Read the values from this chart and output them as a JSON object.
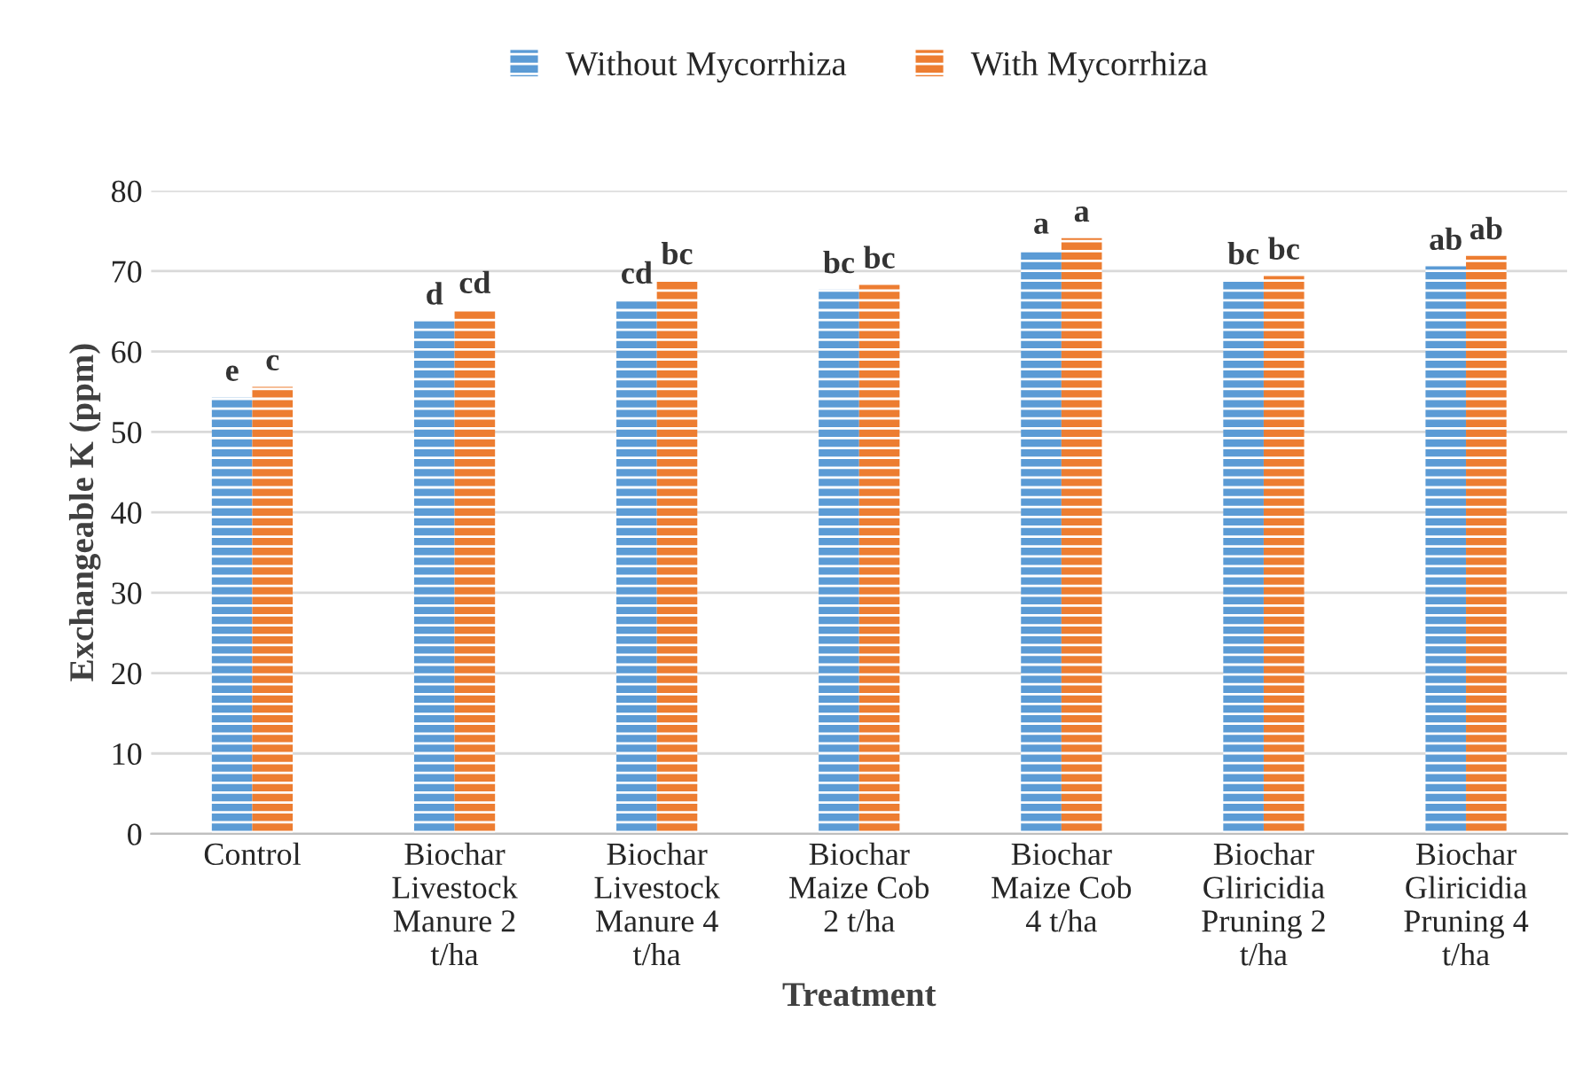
{
  "chart_data": {
    "type": "bar",
    "xlabel": "Treatment",
    "ylabel": "Exchangeable K (ppm)",
    "categories": [
      "Control",
      "Biochar\nLivestock\nManure 2\nt/ha",
      "Biochar\nLivestock\nManure 4\nt/ha",
      "Biochar\nMaize Cob\n2 t/ha",
      "Biochar\nMaize Cob\n4 t/ha",
      "Biochar\nGliricidia\nPruning 2\nt/ha",
      "Biochar\nGliricidia\nPruning 4\nt/ha"
    ],
    "series": [
      {
        "name": "Without Mycorrhiza",
        "color": "#5b9bd5",
        "values": [
          54.3,
          63.8,
          66.4,
          67.7,
          72.6,
          68.8,
          70.6
        ],
        "value_labels": [
          "e",
          "d",
          "cd",
          "bc",
          "a",
          "bc",
          "ab"
        ]
      },
      {
        "name": "With Mycorrhiza",
        "color": "#ed7d31",
        "values": [
          55.6,
          65.2,
          68.8,
          68.3,
          74.1,
          69.4,
          71.9
        ],
        "value_labels": [
          "c",
          "cd",
          "bc",
          "bc",
          "a",
          "bc",
          "ab"
        ]
      }
    ],
    "ylim": [
      0,
      80
    ],
    "yticks": [
      0,
      10,
      20,
      30,
      40,
      50,
      60,
      70,
      80
    ],
    "grid": "y",
    "legend": "top"
  }
}
